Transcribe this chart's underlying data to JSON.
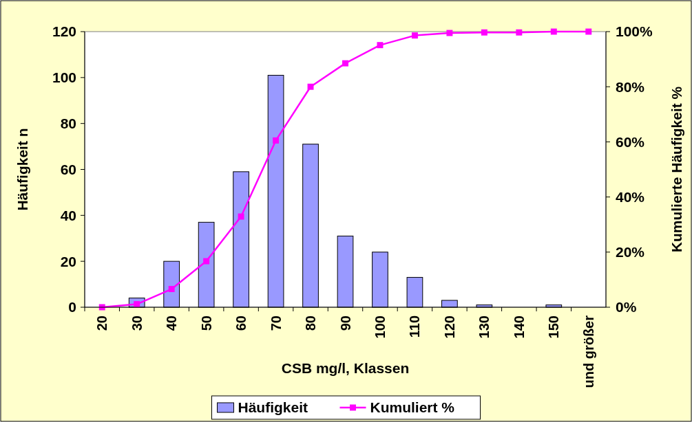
{
  "chart_data": {
    "type": "bar",
    "xlabel": "CSB mg/l, Klassen",
    "ylabel": "Häufigkeit n",
    "y2label": "Kumulierte Häufigkeit %",
    "categories": [
      "20",
      "30",
      "40",
      "50",
      "60",
      "70",
      "80",
      "90",
      "100",
      "110",
      "120",
      "130",
      "140",
      "150",
      "und größer"
    ],
    "series": [
      {
        "name": "Häufigkeit",
        "color": "#9999ff",
        "values": [
          0,
          4,
          20,
          37,
          59,
          101,
          71,
          31,
          24,
          13,
          3,
          1,
          0,
          1,
          0
        ]
      },
      {
        "name": "Kumuliert %",
        "type": "line",
        "axis": "y2",
        "color": "#ff00ff",
        "marker": "square",
        "values": [
          0,
          1.1,
          6.6,
          16.7,
          32.9,
          60.5,
          80.0,
          88.5,
          95.1,
          98.6,
          99.5,
          99.7,
          99.7,
          100,
          100
        ]
      }
    ],
    "ylim": [
      0,
      120
    ],
    "yticks": [
      0,
      20,
      40,
      60,
      80,
      100,
      120
    ],
    "y2lim": [
      0,
      100
    ],
    "y2ticks": [
      {
        "value": 0,
        "label": "0%"
      },
      {
        "value": 20,
        "label": "20%"
      },
      {
        "value": 40,
        "label": "40%"
      },
      {
        "value": 60,
        "label": "60%"
      },
      {
        "value": 80,
        "label": "80%"
      },
      {
        "value": 100,
        "label": "100%"
      }
    ],
    "grid": false,
    "legend": "bottom"
  }
}
